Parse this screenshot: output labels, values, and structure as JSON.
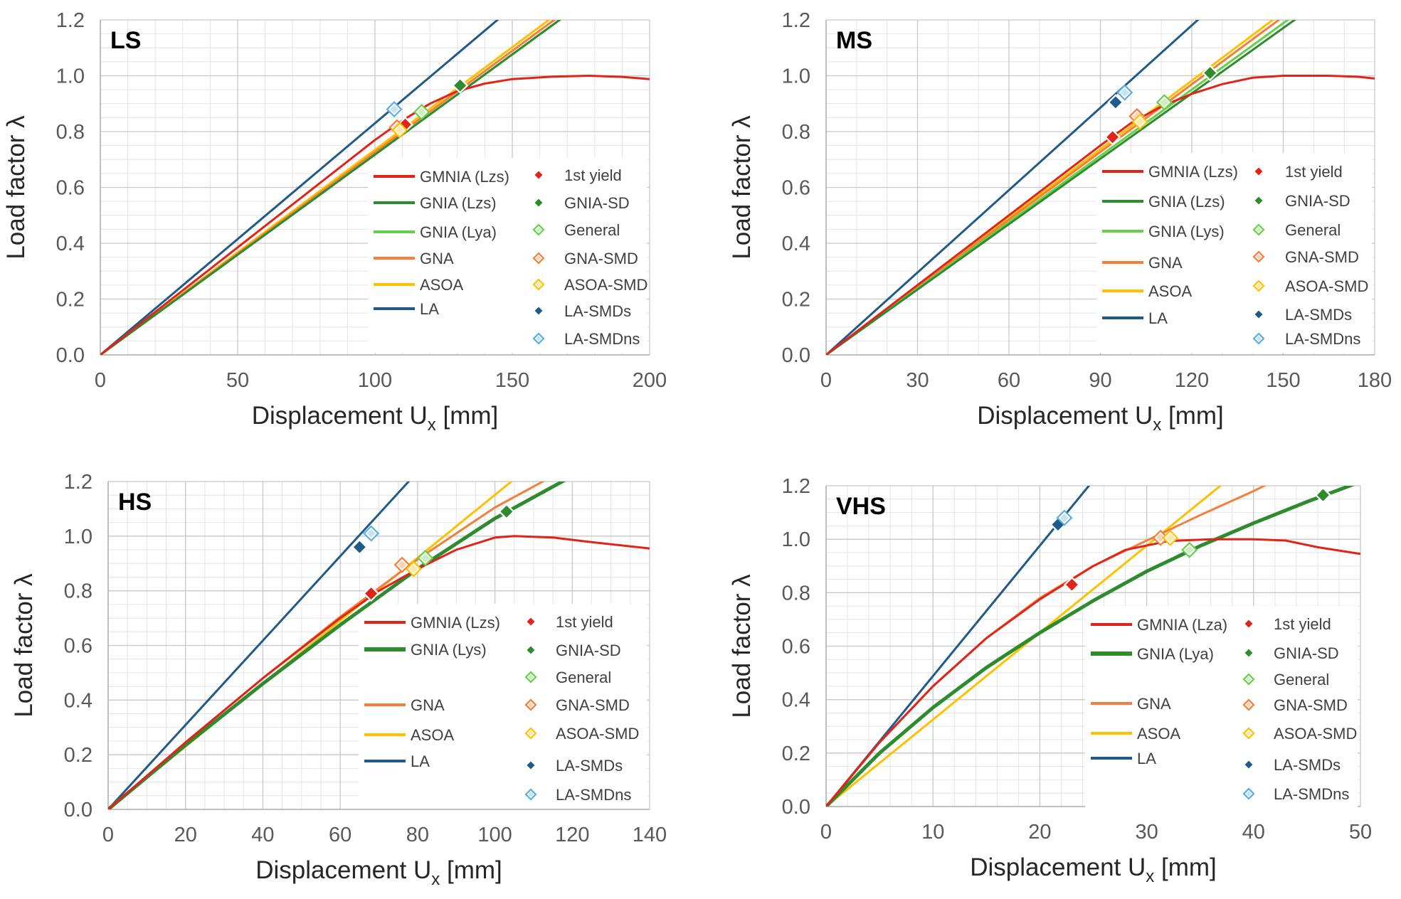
{
  "figure": {
    "description_free": true,
    "colors": {
      "gmnia": "#e2231a",
      "gnia": "#2e8b2e",
      "gnia_light": "#66d04a",
      "gna": "#f47e3a",
      "asoa": "#ffc000",
      "la": "#1f5a8a",
      "la_ns": "#5aaee0",
      "grid_major": "#c8c8c8",
      "grid_minor": "#e4e4e4",
      "axis_text": "#595959"
    }
  },
  "chart_data": [
    {
      "panel": "LS",
      "type": "line",
      "title": "LS",
      "xlabel": "Displacement U",
      "xlabel_sub": "x",
      "xlabel_unit": " [mm]",
      "ylabel": "Load factor λ",
      "xlim": [
        0,
        200
      ],
      "ylim": [
        0,
        1.2
      ],
      "xticks": [
        0,
        50,
        100,
        150,
        200
      ],
      "xtick_labels": [
        "0",
        "50",
        "100",
        "150",
        "200"
      ],
      "yticks": [
        0,
        0.2,
        0.4,
        0.6,
        0.8,
        1.0,
        1.2
      ],
      "ytick_labels": [
        "0.0",
        "0.2",
        "0.4",
        "0.6",
        "0.8",
        "1.0",
        "1.2"
      ],
      "x_minor_step": 10,
      "y_minor_step": 0.05,
      "series": [
        {
          "name": "GMNIA (Lzs)",
          "color_key": "gmnia",
          "width": 3,
          "x": [
            0,
            100,
            110,
            120,
            130,
            140,
            150,
            165,
            178,
            190,
            200
          ],
          "y": [
            0,
            0.77,
            0.84,
            0.9,
            0.945,
            0.972,
            0.988,
            0.997,
            1.0,
            0.996,
            0.988
          ]
        },
        {
          "name": "GNIA (Lzs)",
          "color_key": "gnia",
          "width": 3,
          "x": [
            0,
            170
          ],
          "y": [
            0,
            1.22
          ]
        },
        {
          "name": "GNIA (Lya)",
          "color_key": "gnia_light",
          "width": 3,
          "x": [
            0,
            170
          ],
          "y": [
            0,
            1.22
          ]
        },
        {
          "name": "GNA",
          "color_key": "gna",
          "width": 3,
          "x": [
            0,
            168
          ],
          "y": [
            0,
            1.22
          ]
        },
        {
          "name": "ASOA",
          "color_key": "asoa",
          "width": 3,
          "x": [
            0,
            166
          ],
          "y": [
            0,
            1.22
          ]
        },
        {
          "name": "LA",
          "color_key": "la",
          "width": 3,
          "x": [
            0,
            147
          ],
          "y": [
            0,
            1.22
          ]
        }
      ],
      "markers": [
        {
          "name": "1st yield",
          "color_key": "gmnia",
          "filled": true,
          "x": [
            111
          ],
          "y": [
            0.825
          ]
        },
        {
          "name": "GNIA-SD",
          "color_key": "gnia",
          "filled": true,
          "x": [
            131
          ],
          "y": [
            0.965
          ]
        },
        {
          "name": "General",
          "color_key": "gnia_light",
          "filled": false,
          "x": [
            117
          ],
          "y": [
            0.87
          ]
        },
        {
          "name": "GNA-SMD",
          "color_key": "gna",
          "filled": false,
          "x": [
            108
          ],
          "y": [
            0.815
          ]
        },
        {
          "name": "ASOA-SMD",
          "color_key": "asoa",
          "filled": false,
          "x": [
            109
          ],
          "y": [
            0.805
          ]
        },
        {
          "name": "LA-SMDs",
          "color_key": "la",
          "filled": true,
          "x": [
            107
          ],
          "y": [
            0.88
          ]
        },
        {
          "name": "LA-SMDns",
          "color_key": "la_ns",
          "filled": false,
          "x": [
            107
          ],
          "y": [
            0.88
          ]
        }
      ],
      "legend_lines": [
        "GMNIA (Lzs)",
        "GNIA (Lzs)",
        "GNIA (Lya)",
        "GNA",
        "ASOA",
        "LA"
      ],
      "legend_markers": [
        "1st yield",
        "GNIA-SD",
        "General",
        "GNA-SMD",
        "ASOA-SMD",
        "LA-SMDs",
        "LA-SMDns"
      ],
      "legend_position": "middle-right"
    },
    {
      "panel": "MS",
      "type": "line",
      "title": "MS",
      "xlabel": "Displacement U",
      "xlabel_sub": "x",
      "xlabel_unit": " [mm]",
      "ylabel": "Load factor λ",
      "xlim": [
        0,
        180
      ],
      "ylim": [
        0,
        1.2
      ],
      "xticks": [
        0,
        30,
        60,
        90,
        120,
        150,
        180
      ],
      "xtick_labels": [
        "0",
        "30",
        "60",
        "90",
        "120",
        "150",
        "180"
      ],
      "yticks": [
        0,
        0.2,
        0.4,
        0.6,
        0.8,
        1.0,
        1.2
      ],
      "ytick_labels": [
        "0.0",
        "0.2",
        "0.4",
        "0.6",
        "0.8",
        "1.0",
        "1.2"
      ],
      "x_minor_step": 10,
      "y_minor_step": 0.05,
      "series": [
        {
          "name": "GMNIA (Lzs)",
          "color_key": "gmnia",
          "width": 3,
          "x": [
            0,
            90,
            100,
            110,
            120,
            130,
            140,
            150,
            165,
            175,
            180
          ],
          "y": [
            0,
            0.75,
            0.83,
            0.89,
            0.935,
            0.97,
            0.993,
            1.0,
            1.0,
            0.996,
            0.99
          ]
        },
        {
          "name": "GNIA (Lzs)",
          "color_key": "gnia",
          "width": 3,
          "x": [
            0,
            155
          ],
          "y": [
            0,
            1.21
          ]
        },
        {
          "name": "GNIA (Lys)",
          "color_key": "gnia_light",
          "width": 3,
          "x": [
            0,
            154
          ],
          "y": [
            0,
            1.22
          ]
        },
        {
          "name": "GNA",
          "color_key": "gna",
          "width": 3,
          "x": [
            0,
            151
          ],
          "y": [
            0,
            1.22
          ]
        },
        {
          "name": "ASOA",
          "color_key": "asoa",
          "width": 3,
          "x": [
            0,
            149
          ],
          "y": [
            0,
            1.22
          ]
        },
        {
          "name": "LA",
          "color_key": "la",
          "width": 3,
          "x": [
            0,
            124
          ],
          "y": [
            0,
            1.22
          ]
        }
      ],
      "markers": [
        {
          "name": "1st yield",
          "color_key": "gmnia",
          "filled": true,
          "x": [
            94
          ],
          "y": [
            0.78
          ]
        },
        {
          "name": "GNIA-SD",
          "color_key": "gnia",
          "filled": true,
          "x": [
            126
          ],
          "y": [
            1.01
          ]
        },
        {
          "name": "General",
          "color_key": "gnia_light",
          "filled": false,
          "x": [
            111
          ],
          "y": [
            0.905
          ]
        },
        {
          "name": "GNA-SMD",
          "color_key": "gna",
          "filled": false,
          "x": [
            102
          ],
          "y": [
            0.855
          ]
        },
        {
          "name": "ASOA-SMD",
          "color_key": "asoa",
          "filled": false,
          "x": [
            103
          ],
          "y": [
            0.835
          ]
        },
        {
          "name": "LA-SMDs",
          "color_key": "la",
          "filled": true,
          "x": [
            95
          ],
          "y": [
            0.905
          ]
        },
        {
          "name": "LA-SMDns",
          "color_key": "la_ns",
          "filled": false,
          "x": [
            98
          ],
          "y": [
            0.94
          ]
        }
      ],
      "legend_lines": [
        "GMNIA (Lzs)",
        "GNIA (Lzs)",
        "GNIA (Lys)",
        "GNA",
        "ASOA",
        "LA"
      ],
      "legend_markers": [
        "1st yield",
        "GNIA-SD",
        "General",
        "GNA-SMD",
        "ASOA-SMD",
        "LA-SMDs",
        "LA-SMDns"
      ],
      "legend_position": "middle-right"
    },
    {
      "panel": "HS",
      "type": "line",
      "title": "HS",
      "xlabel": "Displacement U",
      "xlabel_sub": "x",
      "xlabel_unit": " [mm]",
      "ylabel": "Load factor λ",
      "xlim": [
        0,
        140
      ],
      "ylim": [
        0,
        1.2
      ],
      "xticks": [
        0,
        20,
        40,
        60,
        80,
        100,
        120,
        140
      ],
      "xtick_labels": [
        "0",
        "20",
        "40",
        "60",
        "80",
        "100",
        "120",
        "140"
      ],
      "yticks": [
        0,
        0.2,
        0.4,
        0.6,
        0.8,
        1.0,
        1.2
      ],
      "ytick_labels": [
        "0.0",
        "0.2",
        "0.4",
        "0.6",
        "0.8",
        "1.0",
        "1.2"
      ],
      "x_minor_step": 5,
      "y_minor_step": 0.05,
      "series": [
        {
          "name": "GMNIA (Lzs)",
          "color_key": "gmnia",
          "width": 3,
          "x": [
            0,
            20,
            40,
            60,
            70,
            80,
            90,
            100,
            105,
            115,
            125,
            140
          ],
          "y": [
            0,
            0.245,
            0.48,
            0.7,
            0.8,
            0.88,
            0.95,
            0.995,
            1.0,
            0.995,
            0.978,
            0.955
          ]
        },
        {
          "name": "GNIA (Lys)",
          "color_key": "gnia",
          "width": 5,
          "x": [
            0,
            20,
            40,
            60,
            80,
            100,
            120
          ],
          "y": [
            0,
            0.235,
            0.46,
            0.675,
            0.88,
            1.065,
            1.22
          ]
        },
        {
          "name": "GNA",
          "color_key": "gna",
          "width": 3,
          "x": [
            0,
            20,
            40,
            60,
            80,
            100,
            115
          ],
          "y": [
            0,
            0.245,
            0.48,
            0.705,
            0.915,
            1.105,
            1.22
          ]
        },
        {
          "name": "ASOA",
          "color_key": "asoa",
          "width": 3,
          "x": [
            0,
            106
          ],
          "y": [
            0,
            1.22
          ]
        },
        {
          "name": "LA",
          "color_key": "la",
          "width": 3,
          "x": [
            0,
            79
          ],
          "y": [
            0,
            1.22
          ]
        }
      ],
      "markers": [
        {
          "name": "1st yield",
          "color_key": "gmnia",
          "filled": true,
          "x": [
            68
          ],
          "y": [
            0.79
          ]
        },
        {
          "name": "GNIA-SD",
          "color_key": "gnia",
          "filled": true,
          "x": [
            103
          ],
          "y": [
            1.09
          ]
        },
        {
          "name": "General",
          "color_key": "gnia_light",
          "filled": false,
          "x": [
            82
          ],
          "y": [
            0.92
          ]
        },
        {
          "name": "GNA-SMD",
          "color_key": "gna",
          "filled": false,
          "x": [
            76
          ],
          "y": [
            0.895
          ]
        },
        {
          "name": "ASOA-SMD",
          "color_key": "asoa",
          "filled": false,
          "x": [
            79
          ],
          "y": [
            0.88
          ]
        },
        {
          "name": "LA-SMDs",
          "color_key": "la",
          "filled": true,
          "x": [
            65
          ],
          "y": [
            0.96
          ]
        },
        {
          "name": "LA-SMDns",
          "color_key": "la_ns",
          "filled": false,
          "x": [
            68
          ],
          "y": [
            1.01
          ]
        }
      ],
      "legend_lines": [
        "GMNIA (Lzs)",
        "GNIA (Lys)",
        "",
        "GNA",
        "ASOA",
        "LA"
      ],
      "legend_markers": [
        "1st yield",
        "GNIA-SD",
        "General",
        "GNA-SMD",
        "ASOA-SMD",
        "LA-SMDs",
        "LA-SMDns"
      ],
      "legend_position": "middle-right"
    },
    {
      "panel": "VHS",
      "type": "line",
      "title": "VHS",
      "xlabel": "Displacement U",
      "xlabel_sub": "x",
      "xlabel_unit": " [mm]",
      "ylabel": "Load factor λ",
      "xlim": [
        0,
        50
      ],
      "ylim": [
        0,
        1.2
      ],
      "xticks": [
        0,
        10,
        20,
        30,
        40,
        50
      ],
      "xtick_labels": [
        "0",
        "10",
        "20",
        "30",
        "40",
        "50"
      ],
      "yticks": [
        0,
        0.2,
        0.4,
        0.6,
        0.8,
        1.0,
        1.2
      ],
      "ytick_labels": [
        "0.0",
        "0.2",
        "0.4",
        "0.6",
        "0.8",
        "1.0",
        "1.2"
      ],
      "x_minor_step": 2,
      "y_minor_step": 0.05,
      "series": [
        {
          "name": "GMNIA (Lza)",
          "color_key": "gmnia",
          "width": 3,
          "x": [
            0,
            5,
            10,
            15,
            20,
            25,
            28,
            32,
            36,
            40,
            43,
            46,
            50
          ],
          "y": [
            0,
            0.24,
            0.45,
            0.63,
            0.775,
            0.9,
            0.96,
            0.993,
            1.0,
            1.0,
            0.995,
            0.97,
            0.945
          ]
        },
        {
          "name": "GNIA (Lya)",
          "color_key": "gnia",
          "width": 5,
          "x": [
            0,
            5,
            10,
            15,
            20,
            25,
            30,
            35,
            40,
            45,
            50
          ],
          "y": [
            0,
            0.2,
            0.37,
            0.52,
            0.65,
            0.77,
            0.88,
            0.975,
            1.06,
            1.14,
            1.215
          ]
        },
        {
          "name": "GNA",
          "color_key": "gna",
          "width": 3,
          "x": [
            0,
            5,
            10,
            15,
            20,
            25,
            30,
            35,
            40,
            41.5
          ],
          "y": [
            0,
            0.24,
            0.45,
            0.63,
            0.78,
            0.9,
            0.995,
            1.09,
            1.18,
            1.21
          ]
        },
        {
          "name": "ASOA",
          "color_key": "asoa",
          "width": 3,
          "x": [
            0,
            37.5
          ],
          "y": [
            0,
            1.22
          ]
        },
        {
          "name": "LA",
          "color_key": "la",
          "width": 3,
          "x": [
            0,
            25
          ],
          "y": [
            0,
            1.22
          ]
        }
      ],
      "markers": [
        {
          "name": "1st yield",
          "color_key": "gmnia",
          "filled": true,
          "x": [
            23
          ],
          "y": [
            0.83
          ]
        },
        {
          "name": "GNIA-SD",
          "color_key": "gnia",
          "filled": true,
          "x": [
            46.5
          ],
          "y": [
            1.165
          ]
        },
        {
          "name": "General",
          "color_key": "gnia_light",
          "filled": false,
          "x": [
            34
          ],
          "y": [
            0.96
          ]
        },
        {
          "name": "GNA-SMD",
          "color_key": "gna",
          "filled": false,
          "x": [
            31.3
          ],
          "y": [
            1.005
          ]
        },
        {
          "name": "ASOA-SMD",
          "color_key": "asoa",
          "filled": false,
          "x": [
            32.2
          ],
          "y": [
            1.005
          ]
        },
        {
          "name": "LA-SMDs",
          "color_key": "la",
          "filled": true,
          "x": [
            21.7
          ],
          "y": [
            1.055
          ]
        },
        {
          "name": "LA-SMDns",
          "color_key": "la_ns",
          "filled": false,
          "x": [
            22.3
          ],
          "y": [
            1.08
          ]
        }
      ],
      "legend_lines": [
        "GMNIA (Lza)",
        "GNIA (Lya)",
        "",
        "GNA",
        "ASOA",
        "LA"
      ],
      "legend_markers": [
        "1st yield",
        "GNIA-SD",
        "General",
        "GNA-SMD",
        "ASOA-SMD",
        "LA-SMDs",
        "LA-SMDns"
      ],
      "legend_position": "middle-right"
    }
  ]
}
